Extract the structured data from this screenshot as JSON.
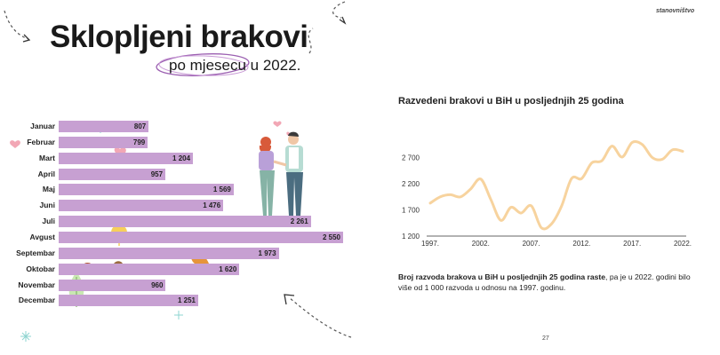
{
  "header": {
    "section": "stanovništvo",
    "title": "Sklopljeni brakovi",
    "subtitle": "po mjesecu u 2022."
  },
  "bar_chart": {
    "bar_color": "#c7a0d2",
    "months": [
      "Januar",
      "Februar",
      "Mart",
      "April",
      "Maj",
      "Juni",
      "Juli",
      "Avgust",
      "Septembar",
      "Oktobar",
      "Novembar",
      "Decembar"
    ],
    "value_labels": [
      "807",
      "799",
      "1 204",
      "957",
      "1 569",
      "1 476",
      "2 261",
      "2 550",
      "1 973",
      "1 620",
      "960",
      "1 251"
    ]
  },
  "line_chart": {
    "title": "Razvedeni brakovi u BiH u posljednjih 25 godina",
    "line_color": "#f7d39e",
    "y_ticks": [
      "2 700",
      "2 200",
      "1 700",
      "1 200"
    ],
    "x_ticks": [
      "1997.",
      "2002.",
      "2007.",
      "2012.",
      "2017.",
      "2022."
    ]
  },
  "description": {
    "bold": "Broj razvoda brakova u BiH u posljednjih 25 godina raste",
    "rest": ", pa je u 2022. godini bilo više od 1 000 razvoda u odnosu na 1997. godinu."
  },
  "page_number": "27",
  "chart_data": [
    {
      "type": "bar",
      "title": "Sklopljeni brakovi po mjesecu u 2022.",
      "categories": [
        "Januar",
        "Februar",
        "Mart",
        "April",
        "Maj",
        "Juni",
        "Juli",
        "Avgust",
        "Septembar",
        "Oktobar",
        "Novembar",
        "Decembar"
      ],
      "values": [
        807,
        799,
        1204,
        957,
        1569,
        1476,
        2261,
        2550,
        1973,
        1620,
        960,
        1251
      ],
      "orientation": "horizontal"
    },
    {
      "type": "line",
      "title": "Razvedeni brakovi u BiH u posljednjih 25 godina",
      "x": [
        1997,
        1998,
        1999,
        2000,
        2001,
        2002,
        2003,
        2004,
        2005,
        2006,
        2007,
        2008,
        2009,
        2010,
        2011,
        2012,
        2013,
        2014,
        2015,
        2016,
        2017,
        2018,
        2019,
        2020,
        2021,
        2022
      ],
      "y": [
        1830,
        1950,
        1990,
        1950,
        2100,
        2290,
        1900,
        1500,
        1750,
        1640,
        1780,
        1360,
        1430,
        1770,
        2300,
        2300,
        2600,
        2640,
        2920,
        2710,
        2990,
        2950,
        2700,
        2670,
        2850,
        2820
      ],
      "ylim": [
        1200,
        3100
      ],
      "y_ticks": [
        1200,
        1700,
        2200,
        2700
      ],
      "grid": false
    }
  ]
}
